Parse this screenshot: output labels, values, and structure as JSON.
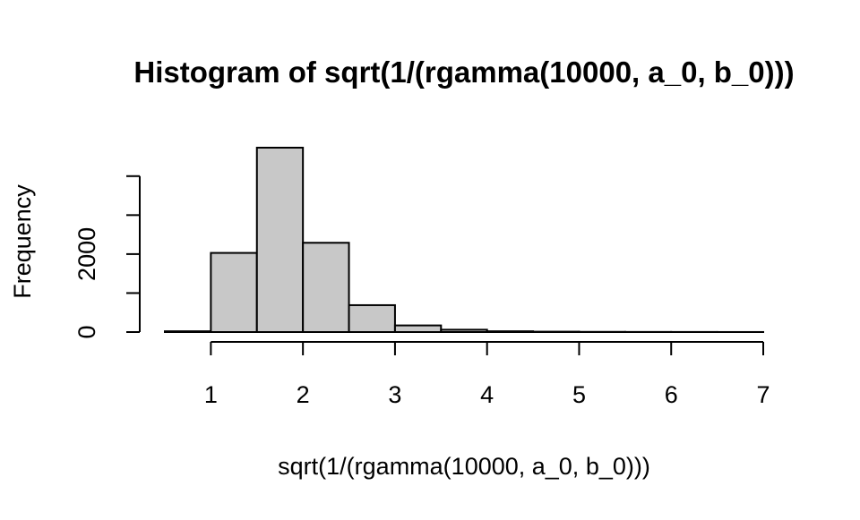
{
  "chart_data": {
    "type": "bar",
    "title": "Histogram of sqrt(1/(rgamma(10000, a_0, b_0)))",
    "xlabel": "sqrt(1/(rgamma(10000, a_0, b_0)))",
    "ylabel": "Frequency",
    "bin_edges": [
      0.5,
      1.0,
      1.5,
      2.0,
      2.5,
      3.0,
      3.5,
      4.0,
      4.5,
      5.0,
      5.5,
      6.0,
      6.5,
      7.0
    ],
    "values": [
      20,
      2030,
      4730,
      2290,
      690,
      170,
      60,
      20,
      10,
      5,
      3,
      2,
      1
    ],
    "xlim": [
      0.5,
      7.0
    ],
    "ylim": [
      0,
      4730
    ],
    "x_ticks": [
      1,
      2,
      3,
      4,
      5,
      6,
      7
    ],
    "x_tick_labels": [
      "1",
      "2",
      "3",
      "4",
      "5",
      "6",
      "7"
    ],
    "y_ticks": [
      0,
      1000,
      2000,
      3000,
      4000
    ],
    "y_tick_labels": [
      "0",
      "",
      "2000",
      "",
      ""
    ],
    "bar_fill": "#c8c8c8",
    "bar_stroke": "#000000",
    "grid": false
  }
}
